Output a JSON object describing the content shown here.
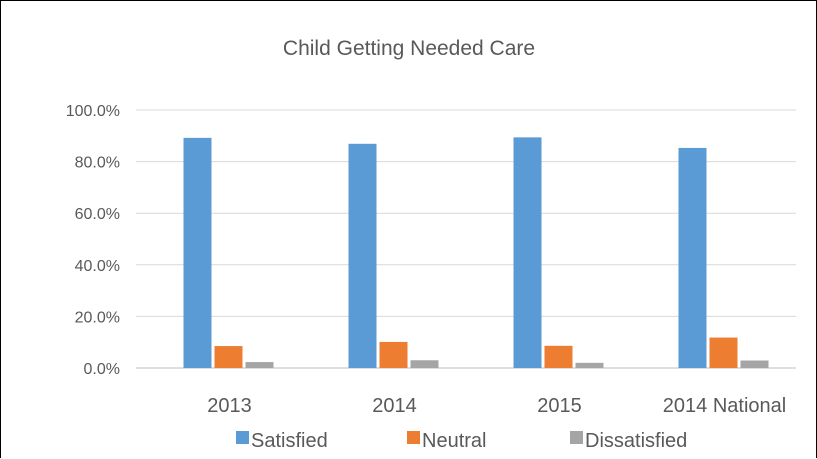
{
  "chart_data": {
    "type": "bar",
    "title": "Child Getting Needed Care",
    "xlabel": "",
    "ylabel": "",
    "categories": [
      "2013",
      "2014",
      "2015",
      "2014 National"
    ],
    "series": [
      {
        "name": "Satisfied",
        "values": [
          89.2,
          86.9,
          89.4,
          85.3
        ],
        "color": "#5b9bd5"
      },
      {
        "name": "Neutral",
        "values": [
          8.5,
          10.1,
          8.6,
          11.8
        ],
        "color": "#ed7d31"
      },
      {
        "name": "Dissatisfied",
        "values": [
          2.3,
          3.0,
          2.0,
          2.9
        ],
        "color": "#a5a5a5"
      }
    ],
    "ylim": [
      0,
      100
    ],
    "yticks": [
      "0.0%",
      "20.0%",
      "40.0%",
      "60.0%",
      "80.0%",
      "100.0%"
    ],
    "grid": true,
    "legend_position": "bottom"
  }
}
